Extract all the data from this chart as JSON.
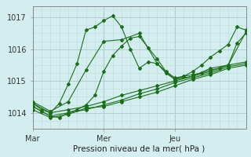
{
  "title": "",
  "xlabel": "Pression niveau de la mer( hPa )",
  "ylabel": "",
  "background_color": "#d4eef0",
  "grid_color_minor": "#c2dde0",
  "grid_color_major": "#b0cdd0",
  "line_color": "#1a6e1a",
  "ylim": [
    1013.5,
    1017.35
  ],
  "xlim": [
    0,
    72
  ],
  "xticks": [
    0,
    24,
    48
  ],
  "xtick_labels": [
    "Mar",
    "Mer",
    "Jeu"
  ],
  "yticks": [
    1014,
    1015,
    1016,
    1017
  ],
  "vlines": [
    0,
    24,
    48
  ],
  "series": [
    [
      0,
      1014.2,
      3,
      1014.05,
      6,
      1013.9,
      9,
      1013.85,
      12,
      1014.0,
      15,
      1014.1,
      18,
      1014.25,
      21,
      1014.55,
      24,
      1015.3,
      27,
      1015.8,
      30,
      1016.1,
      33,
      1016.35,
      36,
      1016.4,
      39,
      1016.05,
      42,
      1015.7,
      45,
      1015.3,
      48,
      1015.1,
      51,
      1015.15,
      54,
      1015.2,
      57,
      1015.25,
      60,
      1015.35,
      63,
      1015.4,
      66,
      1015.5,
      69,
      1016.2,
      72,
      1016.5
    ],
    [
      0,
      1014.3,
      3,
      1014.1,
      6,
      1014.0,
      9,
      1014.3,
      12,
      1014.9,
      15,
      1015.55,
      18,
      1016.6,
      21,
      1016.7,
      24,
      1016.9,
      27,
      1017.05,
      30,
      1016.7,
      33,
      1016.0,
      36,
      1015.4,
      39,
      1015.6,
      42,
      1015.55,
      45,
      1015.25,
      48,
      1015.05,
      51,
      1015.15,
      54,
      1015.3,
      57,
      1015.5,
      60,
      1015.75,
      63,
      1015.95,
      66,
      1016.15,
      69,
      1016.7,
      72,
      1016.6
    ],
    [
      0,
      1014.35,
      6,
      1014.05,
      12,
      1014.35,
      18,
      1015.35,
      24,
      1016.25,
      30,
      1016.3,
      36,
      1016.5,
      42,
      1015.55,
      48,
      1015.05,
      54,
      1015.15,
      60,
      1015.4,
      66,
      1015.5,
      72,
      1016.55
    ],
    [
      0,
      1014.1,
      6,
      1013.85,
      12,
      1013.95,
      18,
      1014.15,
      24,
      1014.2,
      30,
      1014.35,
      36,
      1014.5,
      42,
      1014.65,
      48,
      1014.85,
      54,
      1015.05,
      60,
      1015.2,
      66,
      1015.4,
      72,
      1015.5
    ],
    [
      0,
      1014.2,
      6,
      1013.9,
      12,
      1014.0,
      18,
      1014.1,
      24,
      1014.25,
      30,
      1014.4,
      36,
      1014.6,
      42,
      1014.75,
      48,
      1014.95,
      54,
      1015.1,
      60,
      1015.25,
      66,
      1015.45,
      72,
      1015.55
    ],
    [
      0,
      1014.3,
      6,
      1014.0,
      12,
      1014.1,
      18,
      1014.2,
      24,
      1014.35,
      30,
      1014.55,
      36,
      1014.7,
      42,
      1014.85,
      48,
      1015.0,
      54,
      1015.15,
      60,
      1015.3,
      66,
      1015.5,
      72,
      1015.6
    ]
  ]
}
